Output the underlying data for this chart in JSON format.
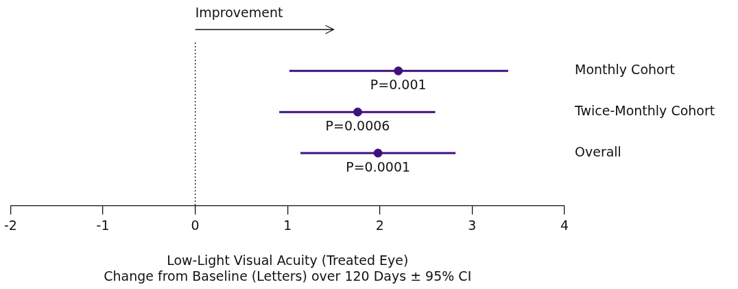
{
  "chart_data": {
    "type": "scatter",
    "orientation": "horizontal",
    "categories": [
      "Monthly Cohort",
      "Twice-Monthly Cohort",
      "Overall"
    ],
    "values": [
      2.2,
      1.76,
      1.98
    ],
    "errors": [
      [
        1.02,
        3.39
      ],
      [
        0.91,
        2.6
      ],
      [
        1.14,
        2.82
      ]
    ],
    "color": "#40107f",
    "marker": "circle",
    "xlim": [
      -2,
      4
    ],
    "xticks": [
      -2,
      -1,
      0,
      1,
      2,
      3,
      4
    ],
    "xlabel": "Low-Light Visual Acuity (Treated Eye)\nChange from Baseline (Letters) over 120 Days ± 95% CI",
    "ref_lines": [
      {
        "axis": "x",
        "value": 0,
        "line_style": "dotted",
        "color": "#000000"
      }
    ],
    "annotations": [
      "Improvement",
      {
        "text": "P=0.001",
        "x": 2.2,
        "y": "Monthly Cohort"
      },
      {
        "text": "P=0.0006",
        "x": 1.76,
        "y": "Twice-Monthly Cohort"
      },
      {
        "text": "P=0.0001",
        "x": 1.98,
        "y": "Overall"
      }
    ],
    "grid": false,
    "legend": false
  }
}
